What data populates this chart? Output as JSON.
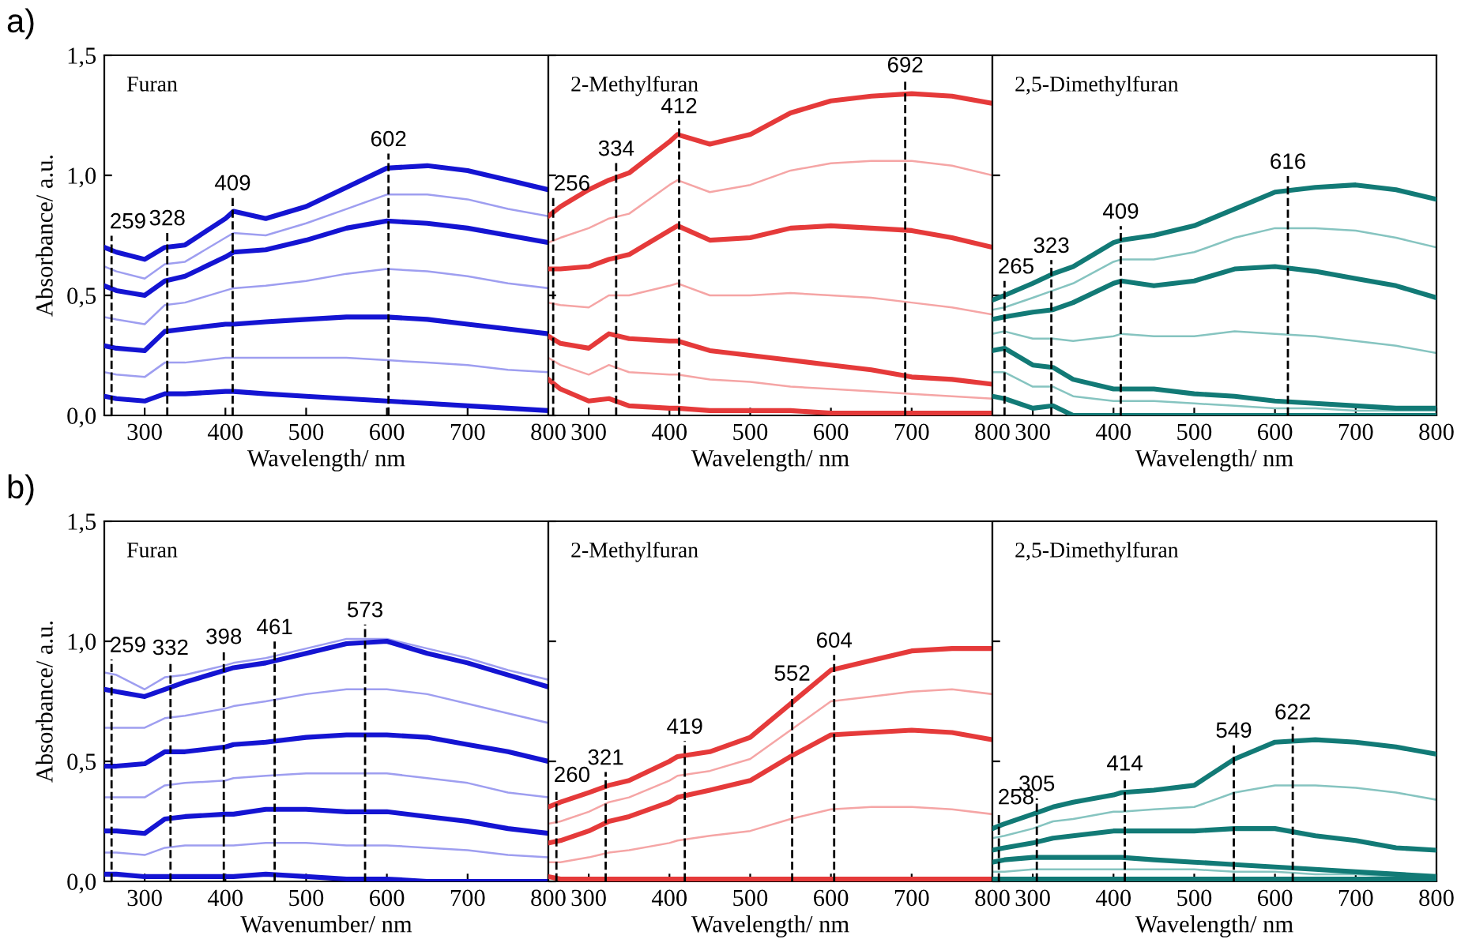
{
  "chart_data": [
    {
      "type": "line",
      "title": "Furan",
      "xlabel": "Wavelength/ nm",
      "ylabel": "Absorbance/ a.u.",
      "xlim": [
        250,
        800
      ],
      "xticks": [
        300,
        400,
        500,
        600,
        700,
        800
      ],
      "ylim": [
        0,
        1.5
      ],
      "yticks": [
        {
          "value": 0,
          "label": "0,0"
        },
        {
          "value": 0.5,
          "label": "0,5"
        },
        {
          "value": 1.0,
          "label": "1,0"
        },
        {
          "value": 1.5,
          "label": "1,5"
        }
      ],
      "legend": false,
      "line_style": "solid",
      "marker": "none",
      "x": [
        250,
        265,
        300,
        325,
        350,
        400,
        410,
        450,
        500,
        550,
        600,
        650,
        700,
        750,
        800
      ],
      "series": [
        {
          "color": "#9e9ef0",
          "values": [
            0.62,
            0.6,
            0.57,
            0.63,
            0.64,
            0.74,
            0.76,
            0.75,
            0.8,
            0.86,
            0.92,
            0.92,
            0.9,
            0.86,
            0.83
          ]
        },
        {
          "color": "#9e9ef0",
          "values": [
            0.41,
            0.4,
            0.38,
            0.46,
            0.47,
            0.52,
            0.53,
            0.54,
            0.56,
            0.59,
            0.61,
            0.6,
            0.58,
            0.55,
            0.53
          ]
        },
        {
          "color": "#9e9ef0",
          "values": [
            0.18,
            0.17,
            0.16,
            0.22,
            0.22,
            0.24,
            0.24,
            0.24,
            0.24,
            0.24,
            0.23,
            0.22,
            0.21,
            0.19,
            0.18
          ]
        },
        {
          "color": "#1414d2",
          "values": [
            0.7,
            0.68,
            0.65,
            0.7,
            0.71,
            0.82,
            0.85,
            0.82,
            0.87,
            0.95,
            1.03,
            1.04,
            1.02,
            0.98,
            0.94
          ]
        },
        {
          "color": "#1414d2",
          "values": [
            0.54,
            0.52,
            0.5,
            0.56,
            0.58,
            0.66,
            0.68,
            0.69,
            0.73,
            0.78,
            0.81,
            0.8,
            0.78,
            0.75,
            0.72
          ]
        },
        {
          "color": "#1414d2",
          "values": [
            0.29,
            0.28,
            0.27,
            0.35,
            0.36,
            0.38,
            0.38,
            0.39,
            0.4,
            0.41,
            0.41,
            0.4,
            0.38,
            0.36,
            0.34
          ]
        },
        {
          "color": "#1414d2",
          "values": [
            0.08,
            0.07,
            0.06,
            0.09,
            0.09,
            0.1,
            0.1,
            0.09,
            0.08,
            0.07,
            0.06,
            0.05,
            0.04,
            0.03,
            0.02
          ]
        }
      ],
      "ref_lines": [
        {
          "axis": "x",
          "value": 259,
          "label": "259",
          "line_style": "dashed"
        },
        {
          "axis": "x",
          "value": 328,
          "label": "328",
          "line_style": "dashed"
        },
        {
          "axis": "x",
          "value": 409,
          "label": "409",
          "line_style": "dashed"
        },
        {
          "axis": "x",
          "value": 602,
          "label": "602",
          "line_style": "dashed"
        }
      ],
      "annotations": [
        "a)"
      ]
    },
    {
      "type": "line",
      "title": "2-Methylfuran",
      "xlabel": "Wavelength/ nm",
      "xlim": [
        250,
        800
      ],
      "xticks": [
        300,
        400,
        500,
        600,
        700,
        800
      ],
      "ylim": [
        0,
        1.5
      ],
      "yticks": [
        0,
        0.5,
        1.0,
        1.5
      ],
      "tick_labels": "x",
      "legend": false,
      "line_style": "solid",
      "marker": "none",
      "x": [
        250,
        265,
        300,
        325,
        350,
        400,
        410,
        450,
        500,
        550,
        600,
        650,
        700,
        750,
        800
      ],
      "series": [
        {
          "color": "#f5a5a5",
          "values": [
            0.72,
            0.74,
            0.78,
            0.82,
            0.84,
            0.96,
            0.98,
            0.93,
            0.96,
            1.02,
            1.05,
            1.06,
            1.06,
            1.04,
            1.0
          ]
        },
        {
          "color": "#f5a5a5",
          "values": [
            0.47,
            0.46,
            0.45,
            0.5,
            0.5,
            0.54,
            0.55,
            0.5,
            0.5,
            0.51,
            0.5,
            0.49,
            0.47,
            0.45,
            0.42
          ]
        },
        {
          "color": "#f5a5a5",
          "values": [
            0.24,
            0.21,
            0.17,
            0.21,
            0.18,
            0.17,
            0.17,
            0.15,
            0.14,
            0.12,
            0.11,
            0.1,
            0.09,
            0.08,
            0.07
          ]
        },
        {
          "color": "#e53a3a",
          "values": [
            0.83,
            0.87,
            0.94,
            0.98,
            1.01,
            1.14,
            1.17,
            1.13,
            1.17,
            1.26,
            1.31,
            1.33,
            1.34,
            1.33,
            1.3
          ]
        },
        {
          "color": "#e53a3a",
          "values": [
            0.61,
            0.61,
            0.62,
            0.65,
            0.67,
            0.77,
            0.79,
            0.73,
            0.74,
            0.78,
            0.79,
            0.78,
            0.77,
            0.74,
            0.7
          ]
        },
        {
          "color": "#e53a3a",
          "values": [
            0.33,
            0.3,
            0.28,
            0.34,
            0.32,
            0.31,
            0.31,
            0.27,
            0.25,
            0.23,
            0.21,
            0.19,
            0.16,
            0.15,
            0.13
          ]
        },
        {
          "color": "#e53a3a",
          "values": [
            0.15,
            0.11,
            0.06,
            0.07,
            0.04,
            0.03,
            0.03,
            0.02,
            0.02,
            0.02,
            0.01,
            0.01,
            0.01,
            0.01,
            0.01
          ]
        }
      ],
      "ref_lines": [
        {
          "axis": "x",
          "value": 256,
          "label": "256",
          "line_style": "dashed"
        },
        {
          "axis": "x",
          "value": 334,
          "label": "334",
          "line_style": "dashed"
        },
        {
          "axis": "x",
          "value": 412,
          "label": "412",
          "line_style": "dashed"
        },
        {
          "axis": "x",
          "value": 692,
          "label": "692",
          "line_style": "dashed"
        }
      ]
    },
    {
      "type": "line",
      "title": "2,5-Dimethylfuran",
      "xlabel": "Wavelength/ nm",
      "xlim": [
        250,
        800
      ],
      "xticks": [
        300,
        400,
        500,
        600,
        700,
        800
      ],
      "ylim": [
        0,
        1.5
      ],
      "yticks": [
        0,
        0.5,
        1.0,
        1.5
      ],
      "tick_labels": "x",
      "legend": false,
      "line_style": "solid",
      "marker": "none",
      "x": [
        250,
        265,
        300,
        325,
        350,
        400,
        410,
        450,
        500,
        550,
        600,
        650,
        700,
        750,
        800
      ],
      "series": [
        {
          "color": "#86c4c0",
          "values": [
            0.44,
            0.45,
            0.49,
            0.52,
            0.55,
            0.64,
            0.65,
            0.65,
            0.68,
            0.74,
            0.78,
            0.78,
            0.77,
            0.74,
            0.7
          ]
        },
        {
          "color": "#86c4c0",
          "values": [
            0.34,
            0.35,
            0.32,
            0.32,
            0.31,
            0.33,
            0.34,
            0.33,
            0.33,
            0.35,
            0.34,
            0.33,
            0.31,
            0.29,
            0.26
          ]
        },
        {
          "color": "#86c4c0",
          "values": [
            0.18,
            0.18,
            0.12,
            0.12,
            0.08,
            0.06,
            0.06,
            0.06,
            0.05,
            0.04,
            0.03,
            0.03,
            0.02,
            0.02,
            0.02
          ]
        },
        {
          "color": "#127a76",
          "values": [
            0.48,
            0.5,
            0.55,
            0.59,
            0.62,
            0.72,
            0.73,
            0.75,
            0.79,
            0.86,
            0.93,
            0.95,
            0.96,
            0.94,
            0.9
          ]
        },
        {
          "color": "#127a76",
          "values": [
            0.4,
            0.41,
            0.43,
            0.44,
            0.47,
            0.55,
            0.56,
            0.54,
            0.56,
            0.61,
            0.62,
            0.6,
            0.57,
            0.54,
            0.49
          ]
        },
        {
          "color": "#127a76",
          "values": [
            0.27,
            0.28,
            0.21,
            0.2,
            0.15,
            0.11,
            0.11,
            0.11,
            0.09,
            0.08,
            0.06,
            0.05,
            0.04,
            0.03,
            0.03
          ]
        },
        {
          "color": "#127a76",
          "values": [
            0.08,
            0.07,
            0.03,
            0.04,
            0.0,
            0.0,
            0.0,
            0.0,
            0.0,
            0.0,
            0.0,
            0.0,
            0.0,
            0.0,
            0.0
          ]
        }
      ],
      "ref_lines": [
        {
          "axis": "x",
          "value": 265,
          "label": "265",
          "line_style": "dashed"
        },
        {
          "axis": "x",
          "value": 323,
          "label": "323",
          "line_style": "dashed"
        },
        {
          "axis": "x",
          "value": 409,
          "label": "409",
          "line_style": "dashed"
        },
        {
          "axis": "x",
          "value": 616,
          "label": "616",
          "line_style": "dashed"
        }
      ]
    },
    {
      "type": "line",
      "title": "Furan",
      "xlabel": "Wavenumber/ nm",
      "ylabel": "Absorbance/ a.u.",
      "xlim": [
        250,
        800
      ],
      "xticks": [
        300,
        400,
        500,
        600,
        700,
        800
      ],
      "ylim": [
        0,
        1.5
      ],
      "yticks": [
        {
          "value": 0,
          "label": "0,0"
        },
        {
          "value": 0.5,
          "label": "0,5"
        },
        {
          "value": 1.0,
          "label": "1,0"
        },
        {
          "value": 1.5,
          "label": "1,5"
        }
      ],
      "legend": false,
      "line_style": "solid",
      "marker": "none",
      "x": [
        250,
        265,
        300,
        325,
        350,
        400,
        410,
        450,
        500,
        550,
        600,
        650,
        700,
        750,
        800
      ],
      "series": [
        {
          "color": "#9e9ef0",
          "values": [
            0.87,
            0.86,
            0.8,
            0.85,
            0.86,
            0.9,
            0.91,
            0.93,
            0.97,
            1.01,
            1.01,
            0.97,
            0.93,
            0.88,
            0.84
          ]
        },
        {
          "color": "#9e9ef0",
          "values": [
            0.64,
            0.64,
            0.64,
            0.68,
            0.69,
            0.72,
            0.73,
            0.75,
            0.78,
            0.8,
            0.8,
            0.78,
            0.74,
            0.7,
            0.66
          ]
        },
        {
          "color": "#9e9ef0",
          "values": [
            0.35,
            0.35,
            0.35,
            0.4,
            0.41,
            0.42,
            0.43,
            0.44,
            0.45,
            0.45,
            0.45,
            0.43,
            0.41,
            0.37,
            0.35
          ]
        },
        {
          "color": "#9e9ef0",
          "values": [
            0.12,
            0.12,
            0.11,
            0.14,
            0.15,
            0.15,
            0.15,
            0.16,
            0.16,
            0.15,
            0.15,
            0.14,
            0.13,
            0.11,
            0.1
          ]
        },
        {
          "color": "#1414d2",
          "values": [
            0.8,
            0.79,
            0.77,
            0.8,
            0.83,
            0.88,
            0.89,
            0.91,
            0.95,
            0.99,
            1.0,
            0.95,
            0.91,
            0.86,
            0.81
          ]
        },
        {
          "color": "#1414d2",
          "values": [
            0.48,
            0.48,
            0.49,
            0.54,
            0.54,
            0.56,
            0.57,
            0.58,
            0.6,
            0.61,
            0.61,
            0.6,
            0.57,
            0.54,
            0.5
          ]
        },
        {
          "color": "#1414d2",
          "values": [
            0.21,
            0.21,
            0.2,
            0.26,
            0.27,
            0.28,
            0.28,
            0.3,
            0.3,
            0.29,
            0.29,
            0.27,
            0.25,
            0.22,
            0.2
          ]
        },
        {
          "color": "#1414d2",
          "values": [
            0.03,
            0.03,
            0.02,
            0.02,
            0.02,
            0.02,
            0.02,
            0.03,
            0.02,
            0.01,
            0.01,
            0.0,
            0.0,
            0.0,
            0.0
          ]
        }
      ],
      "ref_lines": [
        {
          "axis": "x",
          "value": 259,
          "label": "259",
          "line_style": "dashed"
        },
        {
          "axis": "x",
          "value": 332,
          "label": "332",
          "line_style": "dashed"
        },
        {
          "axis": "x",
          "value": 398,
          "label": "398",
          "line_style": "dashed"
        },
        {
          "axis": "x",
          "value": 461,
          "label": "461",
          "line_style": "dashed"
        },
        {
          "axis": "x",
          "value": 573,
          "label": "573",
          "line_style": "dashed"
        }
      ],
      "annotations": [
        "b)"
      ]
    },
    {
      "type": "line",
      "title": "2-Methylfuran",
      "xlabel": "Wavelength/ nm",
      "xlim": [
        250,
        800
      ],
      "xticks": [
        300,
        400,
        500,
        600,
        700,
        800
      ],
      "ylim": [
        0,
        1.5
      ],
      "yticks": [
        0,
        0.5,
        1.0,
        1.5
      ],
      "tick_labels": "x",
      "legend": false,
      "line_style": "solid",
      "marker": "none",
      "x": [
        250,
        265,
        300,
        325,
        350,
        400,
        410,
        450,
        500,
        550,
        600,
        650,
        700,
        750,
        800
      ],
      "series": [
        {
          "color": "#f5a5a5",
          "values": [
            0.24,
            0.25,
            0.29,
            0.33,
            0.35,
            0.42,
            0.44,
            0.46,
            0.51,
            0.63,
            0.75,
            0.77,
            0.79,
            0.8,
            0.78
          ]
        },
        {
          "color": "#f5a5a5",
          "values": [
            0.08,
            0.08,
            0.1,
            0.12,
            0.13,
            0.16,
            0.17,
            0.19,
            0.21,
            0.26,
            0.3,
            0.31,
            0.31,
            0.3,
            0.28
          ]
        },
        {
          "color": "#e53a3a",
          "values": [
            0.31,
            0.33,
            0.37,
            0.4,
            0.42,
            0.5,
            0.52,
            0.54,
            0.6,
            0.74,
            0.88,
            0.92,
            0.96,
            0.97,
            0.97
          ]
        },
        {
          "color": "#e53a3a",
          "values": [
            0.16,
            0.17,
            0.21,
            0.25,
            0.27,
            0.33,
            0.35,
            0.38,
            0.42,
            0.52,
            0.61,
            0.62,
            0.63,
            0.62,
            0.59
          ]
        },
        {
          "color": "#e53a3a",
          "values": [
            0.02,
            0.01,
            0.01,
            0.01,
            0.01,
            0.01,
            0.01,
            0.01,
            0.01,
            0.01,
            0.01,
            0.01,
            0.01,
            0.01,
            0.01
          ]
        }
      ],
      "ref_lines": [
        {
          "axis": "x",
          "value": 260,
          "label": "260",
          "line_style": "dashed"
        },
        {
          "axis": "x",
          "value": 321,
          "label": "321",
          "line_style": "dashed"
        },
        {
          "axis": "x",
          "value": 419,
          "label": "419",
          "line_style": "dashed"
        },
        {
          "axis": "x",
          "value": 552,
          "label": "552",
          "line_style": "dashed"
        },
        {
          "axis": "x",
          "value": 604,
          "label": "604",
          "line_style": "dashed"
        }
      ]
    },
    {
      "type": "line",
      "title": "2,5-Dimethylfuran",
      "xlabel": "Wavelength/ nm",
      "xlim": [
        250,
        800
      ],
      "xticks": [
        300,
        400,
        500,
        600,
        700,
        800
      ],
      "ylim": [
        0,
        1.5
      ],
      "yticks": [
        0,
        0.5,
        1.0,
        1.5
      ],
      "tick_labels": "x",
      "legend": false,
      "line_style": "solid",
      "marker": "none",
      "x": [
        250,
        265,
        300,
        325,
        350,
        400,
        410,
        450,
        500,
        550,
        600,
        650,
        700,
        750,
        800
      ],
      "series": [
        {
          "color": "#86c4c0",
          "values": [
            0.18,
            0.19,
            0.22,
            0.25,
            0.26,
            0.29,
            0.29,
            0.3,
            0.31,
            0.37,
            0.4,
            0.4,
            0.39,
            0.37,
            0.34
          ]
        },
        {
          "color": "#86c4c0",
          "values": [
            0.04,
            0.04,
            0.05,
            0.05,
            0.05,
            0.05,
            0.05,
            0.05,
            0.05,
            0.04,
            0.04,
            0.03,
            0.03,
            0.02,
            0.02
          ]
        },
        {
          "color": "#127a76",
          "values": [
            0.22,
            0.24,
            0.28,
            0.31,
            0.33,
            0.36,
            0.37,
            0.38,
            0.4,
            0.51,
            0.58,
            0.59,
            0.58,
            0.56,
            0.53
          ]
        },
        {
          "color": "#127a76",
          "values": [
            0.13,
            0.14,
            0.16,
            0.18,
            0.19,
            0.21,
            0.21,
            0.21,
            0.21,
            0.22,
            0.22,
            0.19,
            0.17,
            0.14,
            0.13
          ]
        },
        {
          "color": "#127a76",
          "values": [
            0.08,
            0.09,
            0.1,
            0.1,
            0.1,
            0.1,
            0.1,
            0.09,
            0.08,
            0.07,
            0.06,
            0.05,
            0.04,
            0.03,
            0.02
          ]
        },
        {
          "color": "#127a76",
          "values": [
            0.01,
            0.01,
            0.01,
            0.01,
            0.01,
            0.01,
            0.01,
            0.01,
            0.01,
            0.01,
            0.01,
            0.01,
            0.01,
            0.01,
            0.01
          ]
        }
      ],
      "ref_lines": [
        {
          "axis": "x",
          "value": 258,
          "label": "258",
          "line_style": "dashed"
        },
        {
          "axis": "x",
          "value": 305,
          "label": "305",
          "line_style": "dashed"
        },
        {
          "axis": "x",
          "value": 414,
          "label": "414",
          "line_style": "dashed"
        },
        {
          "axis": "x",
          "value": 549,
          "label": "549",
          "line_style": "dashed"
        },
        {
          "axis": "x",
          "value": 622,
          "label": "622",
          "line_style": "dashed"
        }
      ]
    }
  ]
}
